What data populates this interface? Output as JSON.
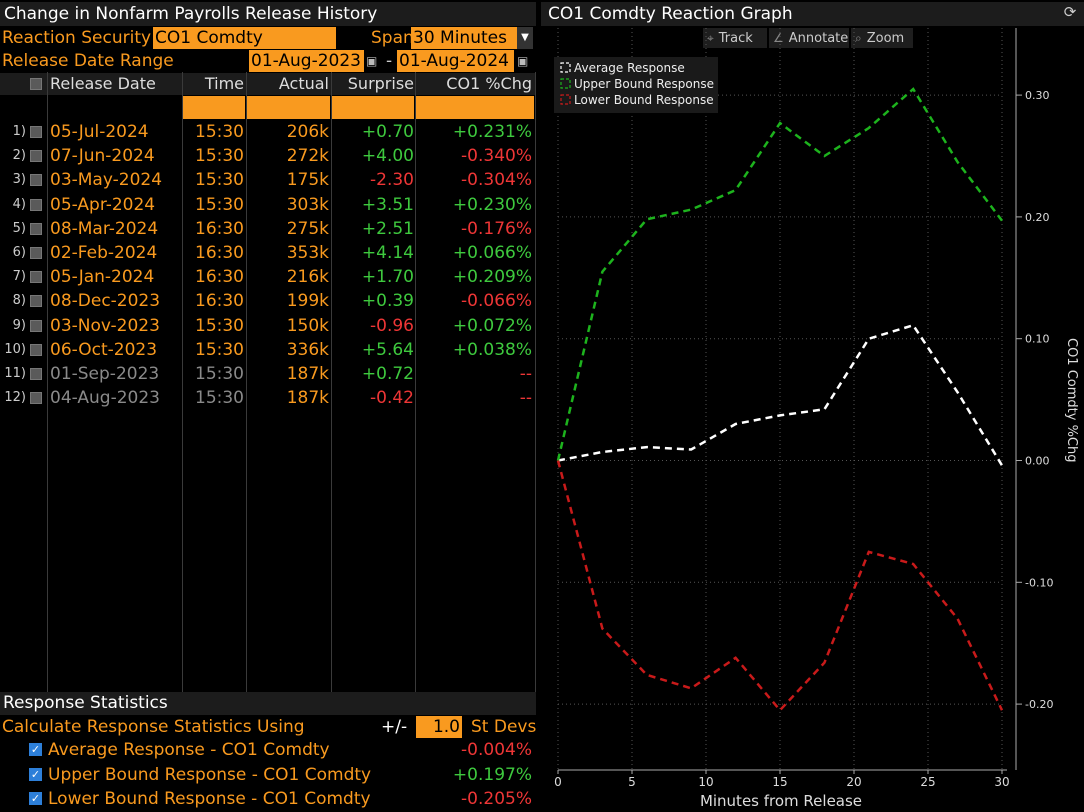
{
  "left_panel": {
    "title": "Change in Nonfarm Payrolls Release History",
    "reaction_security_label": "Reaction Security",
    "reaction_security_value": "CO1 Comdty",
    "span_label": "Span",
    "span_value": "30 Minutes",
    "span_dropdown_glyph": "▼",
    "range_label": "Release Date Range",
    "range_start": "01-Aug-2023",
    "range_end": "01-Aug-2024",
    "range_separator": "-",
    "calendar_glyph": "▣",
    "columns": {
      "release_date": "Release Date",
      "time": "Time",
      "actual": "Actual",
      "surprise": "Surprise",
      "chg": "CO1 %Chg"
    },
    "rows": [
      {
        "idx": "1)",
        "date": "05-Jul-2024",
        "time": "15:30",
        "actual": "206k",
        "surprise": "+0.70",
        "chg": "+0.231%"
      },
      {
        "idx": "2)",
        "date": "07-Jun-2024",
        "time": "15:30",
        "actual": "272k",
        "surprise": "+4.00",
        "chg": "-0.340%"
      },
      {
        "idx": "3)",
        "date": "03-May-2024",
        "time": "15:30",
        "actual": "175k",
        "surprise": "-2.30",
        "chg": "-0.304%"
      },
      {
        "idx": "4)",
        "date": "05-Apr-2024",
        "time": "15:30",
        "actual": "303k",
        "surprise": "+3.51",
        "chg": "+0.230%"
      },
      {
        "idx": "5)",
        "date": "08-Mar-2024",
        "time": "16:30",
        "actual": "275k",
        "surprise": "+2.51",
        "chg": "-0.176%"
      },
      {
        "idx": "6)",
        "date": "02-Feb-2024",
        "time": "16:30",
        "actual": "353k",
        "surprise": "+4.14",
        "chg": "+0.066%"
      },
      {
        "idx": "7)",
        "date": "05-Jan-2024",
        "time": "16:30",
        "actual": "216k",
        "surprise": "+1.70",
        "chg": "+0.209%"
      },
      {
        "idx": "8)",
        "date": "08-Dec-2023",
        "time": "16:30",
        "actual": "199k",
        "surprise": "+0.39",
        "chg": "-0.066%"
      },
      {
        "idx": "9)",
        "date": "03-Nov-2023",
        "time": "15:30",
        "actual": "150k",
        "surprise": "-0.96",
        "chg": "+0.072%"
      },
      {
        "idx": "10)",
        "date": "06-Oct-2023",
        "time": "15:30",
        "actual": "336k",
        "surprise": "+5.64",
        "chg": "+0.038%"
      },
      {
        "idx": "11)",
        "date": "01-Sep-2023",
        "time": "15:30",
        "actual": "187k",
        "surprise": "+0.72",
        "chg": "--"
      },
      {
        "idx": "12)",
        "date": "04-Aug-2023",
        "time": "15:30",
        "actual": "187k",
        "surprise": "-0.42",
        "chg": "--"
      }
    ],
    "stats": {
      "title": "Response Statistics",
      "calc_label": "Calculate Response Statistics Using",
      "plus_minus": "+/-",
      "stdev_value": "1.0",
      "stdev_label": "St Devs",
      "check_glyph": "✓",
      "items": [
        {
          "name": "Average Response - CO1 Comdty",
          "value": "-0.004%"
        },
        {
          "name": "Upper Bound Response - CO1 Comdty",
          "value": "+0.197%"
        },
        {
          "name": "Lower Bound Response - CO1 Comdty",
          "value": "-0.205%"
        }
      ]
    }
  },
  "right_panel": {
    "title": "CO1 Comdty Reaction Graph",
    "refresh_glyph": "⟳",
    "toolbar": [
      {
        "label": "Track",
        "icon": "crosshair-icon",
        "glyph": "⌖"
      },
      {
        "label": "Annotate",
        "icon": "pencil-icon",
        "glyph": "∠"
      },
      {
        "label": "Zoom",
        "icon": "magnifier-icon",
        "glyph": "⌕"
      }
    ]
  },
  "colors": {
    "orange": "#f99a1f",
    "positive": "#3ec93e",
    "negative": "#ee3636",
    "average_line": "#ffffff",
    "upper_line": "#1db31d",
    "lower_line": "#c81a1a"
  },
  "chart_data": {
    "type": "line",
    "title": "CO1 Comdty Reaction Graph",
    "xlabel": "Minutes from Release",
    "ylabel": "CO1 Comdty %Chg",
    "xlim": [
      0,
      30
    ],
    "ylim": [
      -0.25,
      0.35
    ],
    "x_ticks": [
      0,
      5,
      10,
      15,
      20,
      25,
      30
    ],
    "y_ticks": [
      -0.2,
      -0.1,
      0.0,
      0.1,
      0.2,
      0.3
    ],
    "y_tick_labels": [
      "-0.20",
      "-0.10",
      "0.00",
      "0.10",
      "0.20",
      "0.30"
    ],
    "grid": true,
    "legend_position": "top-left",
    "series": [
      {
        "name": "Average Response",
        "color": "#ffffff",
        "x": [
          0,
          3,
          6,
          9,
          12,
          15,
          18,
          21,
          24,
          27,
          30
        ],
        "values": [
          0.0,
          0.007,
          0.011,
          0.009,
          0.03,
          0.037,
          0.042,
          0.1,
          0.111,
          0.056,
          -0.004
        ]
      },
      {
        "name": "Upper Bound Response",
        "color": "#1db31d",
        "x": [
          0,
          3,
          6,
          9,
          12,
          15,
          18,
          21,
          24,
          27,
          30
        ],
        "values": [
          0.0,
          0.155,
          0.198,
          0.206,
          0.222,
          0.277,
          0.25,
          0.273,
          0.305,
          0.245,
          0.197
        ]
      },
      {
        "name": "Lower Bound Response",
        "color": "#c81a1a",
        "x": [
          0,
          3,
          6,
          9,
          12,
          15,
          18,
          21,
          24,
          27,
          30
        ],
        "values": [
          0.0,
          -0.138,
          -0.176,
          -0.187,
          -0.162,
          -0.205,
          -0.166,
          -0.075,
          -0.085,
          -0.13,
          -0.205
        ]
      }
    ]
  }
}
